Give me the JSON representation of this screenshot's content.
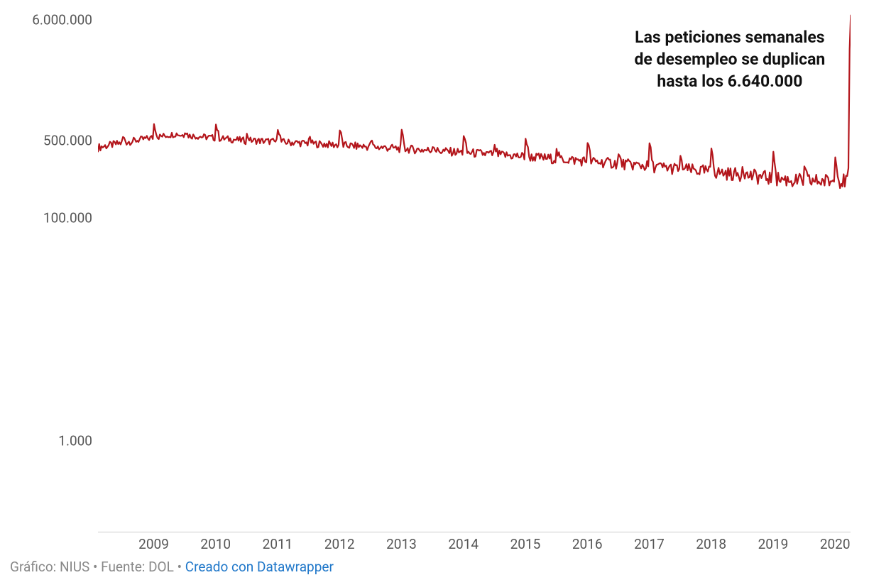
{
  "chart": {
    "type": "line",
    "background_color": "#ffffff",
    "line_color": "#b3151b",
    "line_width": 2.2,
    "y_scale": "log",
    "y_min": 150,
    "y_max": 7000000,
    "y_ticks": [
      {
        "value": 1000,
        "label": "1.000"
      },
      {
        "value": 100000,
        "label": "100.000"
      },
      {
        "value": 500000,
        "label": "500.000"
      },
      {
        "value": 6000000,
        "label": "6.000.000"
      }
    ],
    "x_min": 2008.1,
    "x_max": 2020.25,
    "x_ticks": [
      {
        "value": 2009,
        "label": "2009"
      },
      {
        "value": 2010,
        "label": "2010"
      },
      {
        "value": 2011,
        "label": "2011"
      },
      {
        "value": 2012,
        "label": "2012"
      },
      {
        "value": 2013,
        "label": "2013"
      },
      {
        "value": 2014,
        "label": "2014"
      },
      {
        "value": 2015,
        "label": "2015"
      },
      {
        "value": 2016,
        "label": "2016"
      },
      {
        "value": 2017,
        "label": "2017"
      },
      {
        "value": 2018,
        "label": "2018"
      },
      {
        "value": 2019,
        "label": "2019"
      },
      {
        "value": 2020,
        "label": "2020"
      }
    ],
    "y_label_fontsize": 19,
    "y_label_color": "#555555",
    "x_label_fontsize": 19,
    "x_label_color": "#555555",
    "axis_line_color": "#cccccc",
    "annotation": {
      "line1": "Las peticiones semanales",
      "line2": "de desempleo se duplican",
      "line3": "hasta los 6.640.000",
      "fontsize": 23,
      "fontweight": 700,
      "color": "#111111",
      "x_center": 2018.3,
      "y_top_value": 5300000
    }
  },
  "footer": {
    "prefix": "Gráfico: NIUS",
    "source": "Fuente: DOL",
    "created_with": "Creado con Datawrapper",
    "sep": " • ",
    "link_color": "#1f77c9",
    "color": "#888888",
    "fontsize": 19
  }
}
